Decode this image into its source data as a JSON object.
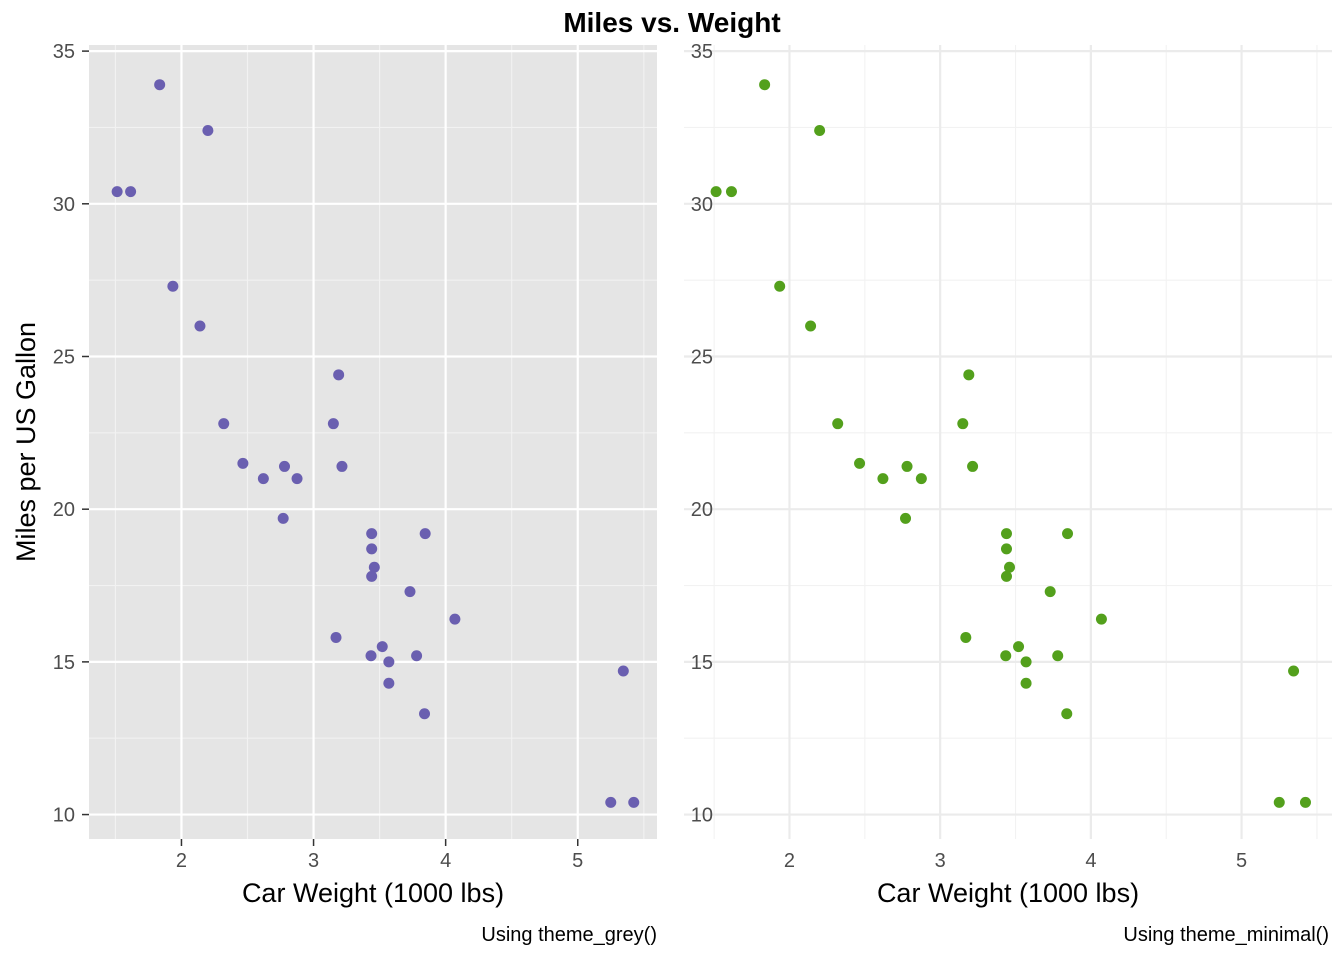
{
  "title": "Miles vs. Weight",
  "chart_data": [
    {
      "type": "scatter",
      "theme": "grey",
      "xlabel": "Car Weight (1000 lbs)",
      "ylabel": "Miles per US Gallon",
      "caption": "Using theme_grey()",
      "point_color": "#6a5fb0",
      "panel_background": "#e5e5e5",
      "grid": true,
      "xlim": [
        1.3,
        5.6
      ],
      "ylim": [
        9.2,
        35.2
      ],
      "x_ticks": [
        "2",
        "3",
        "4",
        "5"
      ],
      "y_ticks": [
        "10",
        "15",
        "20",
        "25",
        "30",
        "35"
      ],
      "points": [
        {
          "x": 2.62,
          "y": 21.0
        },
        {
          "x": 2.875,
          "y": 21.0
        },
        {
          "x": 2.32,
          "y": 22.8
        },
        {
          "x": 3.215,
          "y": 21.4
        },
        {
          "x": 3.44,
          "y": 18.7
        },
        {
          "x": 3.46,
          "y": 18.1
        },
        {
          "x": 3.57,
          "y": 14.3
        },
        {
          "x": 3.19,
          "y": 24.4
        },
        {
          "x": 3.15,
          "y": 22.8
        },
        {
          "x": 3.44,
          "y": 19.2
        },
        {
          "x": 3.44,
          "y": 17.8
        },
        {
          "x": 4.07,
          "y": 16.4
        },
        {
          "x": 3.73,
          "y": 17.3
        },
        {
          "x": 3.78,
          "y": 15.2
        },
        {
          "x": 5.25,
          "y": 10.4
        },
        {
          "x": 5.424,
          "y": 10.4
        },
        {
          "x": 5.345,
          "y": 14.7
        },
        {
          "x": 2.2,
          "y": 32.4
        },
        {
          "x": 1.615,
          "y": 30.4
        },
        {
          "x": 1.835,
          "y": 33.9
        },
        {
          "x": 2.465,
          "y": 21.5
        },
        {
          "x": 3.52,
          "y": 15.5
        },
        {
          "x": 3.435,
          "y": 15.2
        },
        {
          "x": 3.84,
          "y": 13.3
        },
        {
          "x": 3.845,
          "y": 19.2
        },
        {
          "x": 1.935,
          "y": 27.3
        },
        {
          "x": 2.14,
          "y": 26.0
        },
        {
          "x": 1.513,
          "y": 30.4
        },
        {
          "x": 3.17,
          "y": 15.8
        },
        {
          "x": 2.77,
          "y": 19.7
        },
        {
          "x": 3.57,
          "y": 15.0
        },
        {
          "x": 2.78,
          "y": 21.4
        }
      ]
    },
    {
      "type": "scatter",
      "theme": "minimal",
      "xlabel": "Car Weight (1000 lbs)",
      "ylabel": "",
      "caption": "Using theme_minimal()",
      "point_color": "#53a01c",
      "panel_background": "#ffffff",
      "grid": true,
      "xlim": [
        1.3,
        5.6
      ],
      "ylim": [
        9.2,
        35.2
      ],
      "x_ticks": [
        "2",
        "3",
        "4",
        "5"
      ],
      "y_ticks": [
        "10",
        "15",
        "20",
        "25",
        "30",
        "35"
      ],
      "points": [
        {
          "x": 2.62,
          "y": 21.0
        },
        {
          "x": 2.875,
          "y": 21.0
        },
        {
          "x": 2.32,
          "y": 22.8
        },
        {
          "x": 3.215,
          "y": 21.4
        },
        {
          "x": 3.44,
          "y": 18.7
        },
        {
          "x": 3.46,
          "y": 18.1
        },
        {
          "x": 3.57,
          "y": 14.3
        },
        {
          "x": 3.19,
          "y": 24.4
        },
        {
          "x": 3.15,
          "y": 22.8
        },
        {
          "x": 3.44,
          "y": 19.2
        },
        {
          "x": 3.44,
          "y": 17.8
        },
        {
          "x": 4.07,
          "y": 16.4
        },
        {
          "x": 3.73,
          "y": 17.3
        },
        {
          "x": 3.78,
          "y": 15.2
        },
        {
          "x": 5.25,
          "y": 10.4
        },
        {
          "x": 5.424,
          "y": 10.4
        },
        {
          "x": 5.345,
          "y": 14.7
        },
        {
          "x": 2.2,
          "y": 32.4
        },
        {
          "x": 1.615,
          "y": 30.4
        },
        {
          "x": 1.835,
          "y": 33.9
        },
        {
          "x": 2.465,
          "y": 21.5
        },
        {
          "x": 3.52,
          "y": 15.5
        },
        {
          "x": 3.435,
          "y": 15.2
        },
        {
          "x": 3.84,
          "y": 13.3
        },
        {
          "x": 3.845,
          "y": 19.2
        },
        {
          "x": 1.935,
          "y": 27.3
        },
        {
          "x": 2.14,
          "y": 26.0
        },
        {
          "x": 1.513,
          "y": 30.4
        },
        {
          "x": 3.17,
          "y": 15.8
        },
        {
          "x": 2.77,
          "y": 19.7
        },
        {
          "x": 3.57,
          "y": 15.0
        },
        {
          "x": 2.78,
          "y": 21.4
        }
      ]
    }
  ]
}
